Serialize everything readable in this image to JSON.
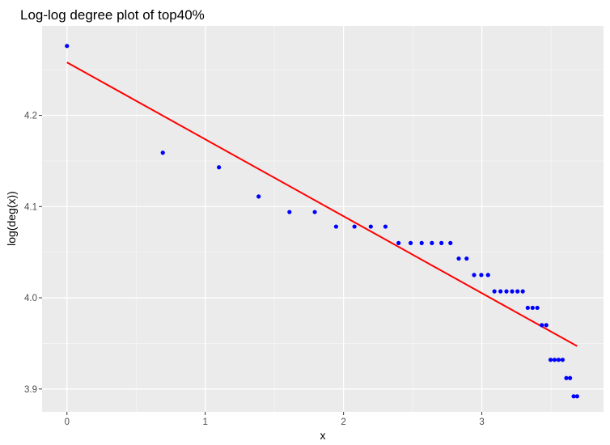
{
  "chart_data": {
    "type": "scatter",
    "title": "Log-log degree plot of top40%",
    "xlabel": "x",
    "ylabel": "log(deg(x))",
    "xlim": [
      -0.18,
      3.88
    ],
    "ylim": [
      3.875,
      4.298
    ],
    "x_ticks": [
      0,
      1,
      2,
      3
    ],
    "x_tick_labels": [
      "0",
      "1",
      "2",
      "3"
    ],
    "y_ticks": [
      3.9,
      4.0,
      4.1,
      4.2
    ],
    "y_tick_labels": [
      "3.9",
      "4.0",
      "4.1",
      "4.2"
    ],
    "grid": true,
    "legend": "none",
    "colors": {
      "panel_background": "#ebebeb",
      "grid_major": "#ffffff",
      "grid_minor": "#f5f5f5",
      "points": "#0000ff",
      "fit_line": "#ff0000",
      "tick_mark": "#333333"
    },
    "series": [
      {
        "kind": "points",
        "x": [
          0.0,
          0.693,
          1.099,
          1.386,
          1.609,
          1.792,
          1.946,
          2.079,
          2.197,
          2.303,
          2.398,
          2.485,
          2.565,
          2.639,
          2.708,
          2.773,
          2.833,
          2.89,
          2.944,
          2.996,
          3.045,
          3.091,
          3.135,
          3.178,
          3.219,
          3.258,
          3.296,
          3.332,
          3.367,
          3.401,
          3.434,
          3.466,
          3.497,
          3.526,
          3.555,
          3.584,
          3.611,
          3.638,
          3.664,
          3.689
        ],
        "y": [
          4.276,
          4.159,
          4.143,
          4.111,
          4.094,
          4.094,
          4.078,
          4.078,
          4.078,
          4.078,
          4.06,
          4.06,
          4.06,
          4.06,
          4.06,
          4.06,
          4.043,
          4.043,
          4.025,
          4.025,
          4.025,
          4.007,
          4.007,
          4.007,
          4.007,
          4.007,
          4.007,
          3.989,
          3.989,
          3.989,
          3.97,
          3.97,
          3.932,
          3.932,
          3.932,
          3.932,
          3.912,
          3.912,
          3.892,
          3.892
        ]
      },
      {
        "kind": "fit-line",
        "x": [
          0.0,
          3.689
        ],
        "y": [
          4.258,
          3.947
        ]
      }
    ]
  }
}
